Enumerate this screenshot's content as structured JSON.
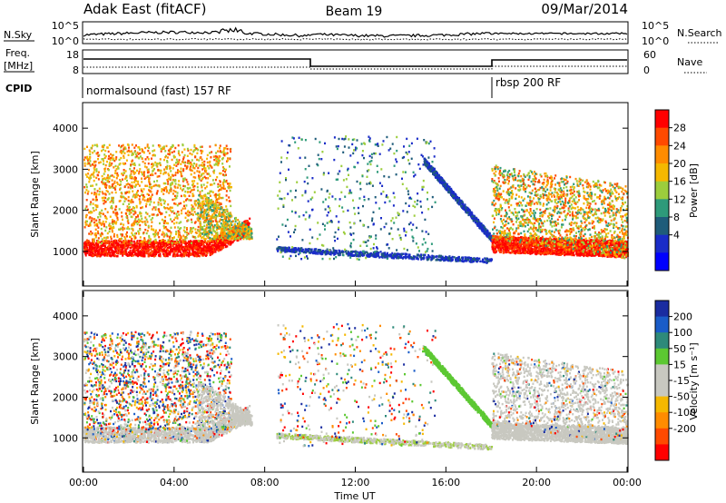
{
  "header": {
    "station": "Adak East (fitACF)",
    "beam": "Beam 19",
    "date": "09/Mar/2014"
  },
  "top_panels": {
    "nsky_label": "N.Sky",
    "nsearch_label": "N.Search",
    "nsky_ticks": [
      "10^5",
      "10^0"
    ],
    "nsearch_ticks": [
      "10^5",
      "10^0"
    ],
    "freq_label_1": "Freq.",
    "freq_label_2": "[MHz]",
    "freq_ticks": [
      "18",
      "8"
    ],
    "nave_label": "Nave",
    "nave_ticks": [
      "60",
      "0"
    ],
    "cpid_label": "CPID",
    "cpid_segments": [
      {
        "text": "normalsound (fast) 157 RF",
        "start_h": 0,
        "end_h": 18
      },
      {
        "text": "rbsp 200 RF",
        "start_h": 18,
        "end_h": 24
      }
    ]
  },
  "colorbars": {
    "power": {
      "label": "Power [dB]",
      "ticks": [
        "28",
        "24",
        "20",
        "16",
        "12",
        "8",
        "4"
      ],
      "colors": [
        "#ff0000",
        "#ff4a00",
        "#ff8c00",
        "#f5b800",
        "#9ccd3c",
        "#2e9a7a",
        "#1f5c7a",
        "#1a2cc8",
        "#0000ff"
      ]
    },
    "velocity": {
      "label": "Velocity [m s⁻¹]",
      "ticks": [
        "200",
        "100",
        "50",
        "15",
        "-15",
        "-50",
        "-100",
        "-200"
      ],
      "colors": [
        "#1a2ca0",
        "#1a5cc8",
        "#2e8a7a",
        "#5cc832",
        "#c8c8c0",
        "#c8c8c0",
        "#f5b800",
        "#ff8c00",
        "#ff4a00",
        "#ff0000"
      ]
    }
  },
  "axes": {
    "ylabel": "Slant Range [km]",
    "yticks": [
      "4000",
      "3000",
      "2000",
      "1000"
    ],
    "xticks": [
      "00:00",
      "04:00",
      "08:00",
      "12:00",
      "16:00",
      "20:00",
      "00:00"
    ],
    "xlabel": "Time UT"
  },
  "chart_data": [
    {
      "type": "heatmap",
      "panel": "power",
      "x_range_h": [
        0,
        24
      ],
      "ylim_km": [
        180,
        4600
      ],
      "colorbar": "Power [dB]",
      "features": [
        {
          "t": [
            0,
            7.2
          ],
          "range_km": [
            850,
            3500
          ],
          "value": "high power band near 900-1300 km, mixed echoes above"
        },
        {
          "t": [
            8.5,
            18
          ],
          "range_km": [
            650,
            1050
          ],
          "value": "weak (~4-8 dB) band descending from 1000 to 700 km"
        },
        {
          "t": [
            13,
            18
          ],
          "range_km": [
            1400,
            3200
          ],
          "value": "weak diagonal streaks"
        },
        {
          "t": [
            18,
            24
          ],
          "range_km": [
            850,
            3600
          ],
          "value": "strong echoes near 900-1200 km, bands above"
        }
      ]
    },
    {
      "type": "heatmap",
      "panel": "velocity",
      "x_range_h": [
        0,
        24
      ],
      "ylim_km": [
        180,
        4600
      ],
      "colorbar": "Velocity [m s⁻¹]",
      "features": [
        {
          "t": [
            0,
            7.5
          ],
          "range_km": [
            850,
            1300
          ],
          "value": "near-zero velocity (ground scatter)"
        },
        {
          "t": [
            0,
            5
          ],
          "range_km": [
            1300,
            3500
          ],
          "value": "mixed velocities"
        },
        {
          "t": [
            15,
            18
          ],
          "range_km": [
            1300,
            3000
          ],
          "value": "~50 m/s diagonal band"
        },
        {
          "t": [
            18,
            24
          ],
          "range_km": [
            850,
            3500
          ],
          "value": "near-zero velocity bands"
        }
      ]
    }
  ]
}
